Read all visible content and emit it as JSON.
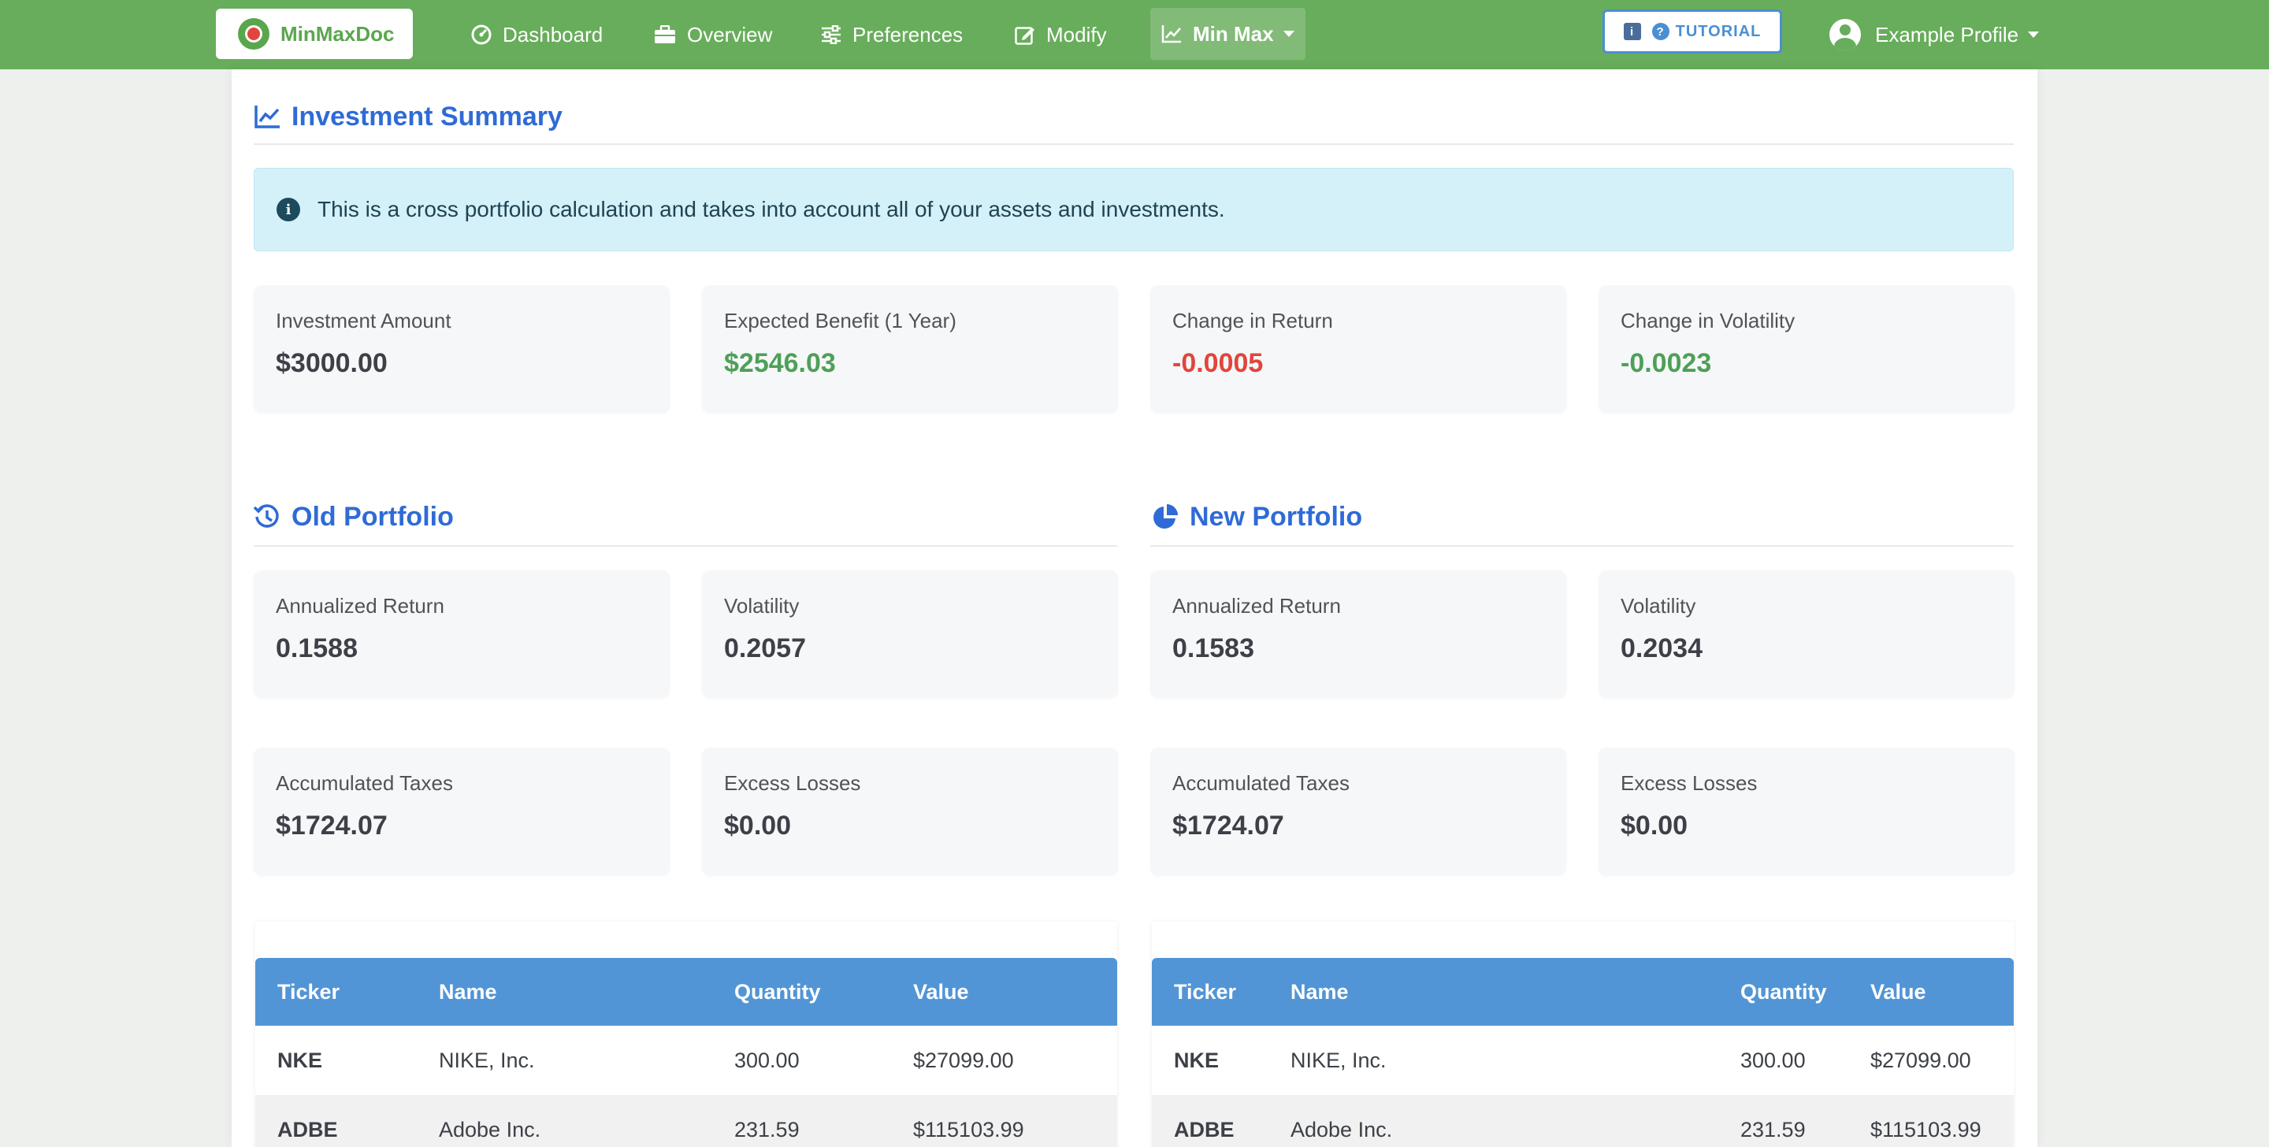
{
  "navbar": {
    "brand": "MinMaxDoc",
    "items": [
      {
        "label": "Dashboard",
        "icon": "gauge-icon"
      },
      {
        "label": "Overview",
        "icon": "briefcase-icon"
      },
      {
        "label": "Preferences",
        "icon": "sliders-icon"
      },
      {
        "label": "Modify",
        "icon": "edit-icon"
      },
      {
        "label": "Min Max",
        "icon": "chart-line-icon"
      }
    ],
    "tutorial_label": "TUTORIAL",
    "tutorial_square": "i",
    "tutorial_q": "?",
    "profile_label": "Example Profile"
  },
  "summary": {
    "title": "Investment Summary",
    "info_icon": "i",
    "info": "This is a cross portfolio calculation and takes into account all of your assets and investments.",
    "cards": [
      {
        "label": "Investment Amount",
        "value": "$3000.00",
        "color": "#3d4047"
      },
      {
        "label": "Expected Benefit (1 Year)",
        "value": "$2546.03",
        "color": "#4ea057"
      },
      {
        "label": "Change in Return",
        "value": "-0.0005",
        "color": "#e2453c"
      },
      {
        "label": "Change in Volatility",
        "value": "-0.0023",
        "color": "#4ea057"
      }
    ]
  },
  "old_portfolio": {
    "title": "Old Portfolio",
    "cards": [
      {
        "label": "Annualized Return",
        "value": "0.1588"
      },
      {
        "label": "Volatility",
        "value": "0.2057"
      },
      {
        "label": "Accumulated Taxes",
        "value": "$1724.07"
      },
      {
        "label": "Excess Losses",
        "value": "$0.00"
      }
    ],
    "table": {
      "headers": [
        "Ticker",
        "Name",
        "Quantity",
        "Value"
      ],
      "rows": [
        [
          "NKE",
          "NIKE, Inc.",
          "300.00",
          "$27099.00"
        ],
        [
          "ADBE",
          "Adobe Inc.",
          "231.59",
          "$115103.99"
        ]
      ]
    }
  },
  "new_portfolio": {
    "title": "New Portfolio",
    "cards": [
      {
        "label": "Annualized Return",
        "value": "0.1583"
      },
      {
        "label": "Volatility",
        "value": "0.2034"
      },
      {
        "label": "Accumulated Taxes",
        "value": "$1724.07"
      },
      {
        "label": "Excess Losses",
        "value": "$0.00"
      }
    ],
    "table": {
      "headers": [
        "Ticker",
        "Name",
        "Quantity",
        "Value"
      ],
      "rows": [
        [
          "NKE",
          "NIKE, Inc.",
          "300.00",
          "$27099.00"
        ],
        [
          "ADBE",
          "Adobe Inc.",
          "231.59",
          "$115103.99"
        ]
      ]
    }
  },
  "colors": {
    "navbar": "#67ad5b",
    "accent": "#2f6bd6",
    "table_header": "#5295d6",
    "positive": "#4ea057",
    "negative": "#e2453c"
  }
}
